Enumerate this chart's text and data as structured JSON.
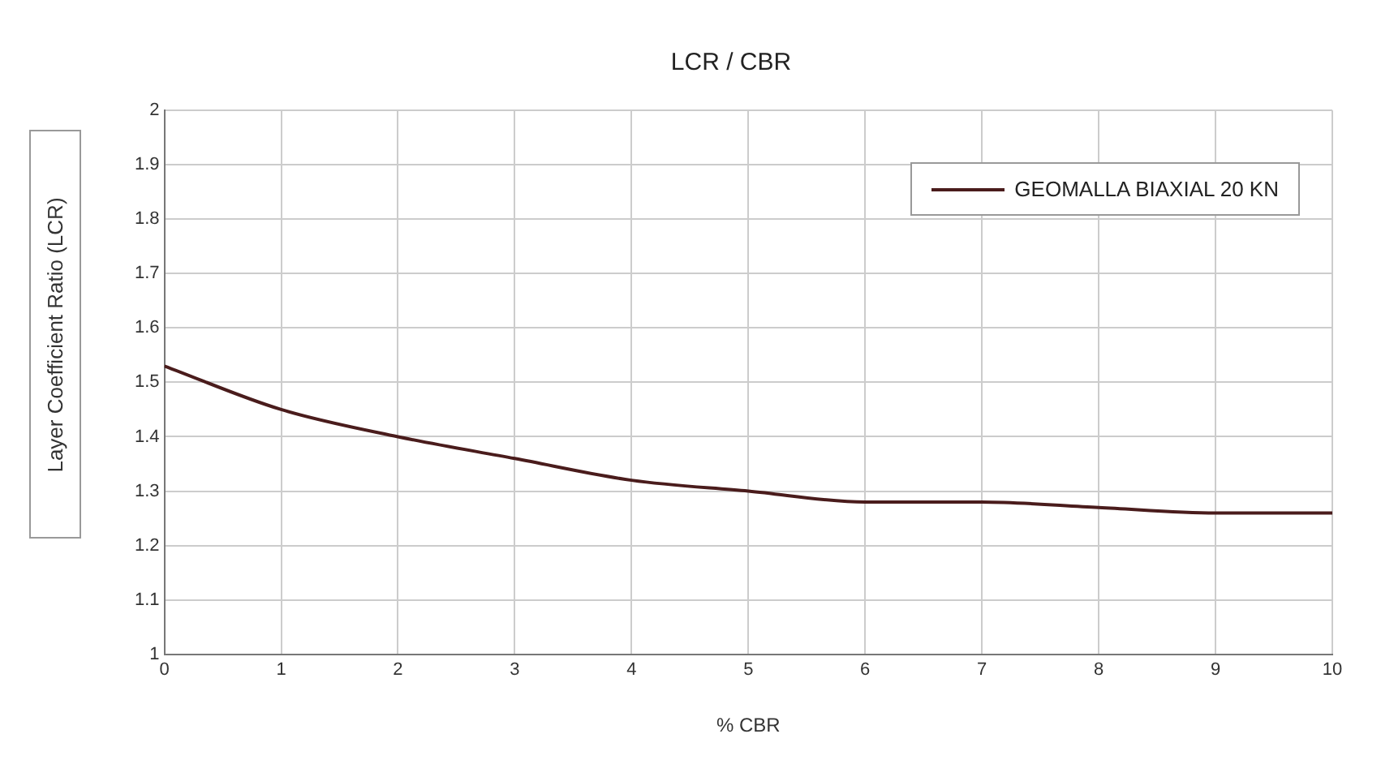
{
  "chart_data": {
    "type": "line",
    "title": "LCR / CBR",
    "xlabel": "% CBR",
    "ylabel": "Layer Coefficient Ratio (LCR)",
    "x": [
      0,
      1,
      2,
      3,
      4,
      5,
      6,
      7,
      8,
      9,
      10
    ],
    "series": [
      {
        "name": "GEOMALLA BIAXIAL 20 KN",
        "color": "#4a1c1c",
        "values": [
          1.53,
          1.45,
          1.4,
          1.36,
          1.32,
          1.3,
          1.28,
          1.28,
          1.27,
          1.26,
          1.26
        ]
      }
    ],
    "xlim": [
      0,
      10
    ],
    "xticks": [
      0,
      1,
      2,
      3,
      4,
      5,
      6,
      7,
      8,
      9,
      10
    ],
    "ylim": [
      1,
      2
    ],
    "yticks": [
      1,
      1.1,
      1.2,
      1.3,
      1.4,
      1.5,
      1.6,
      1.7,
      1.8,
      1.9,
      2
    ],
    "grid": true,
    "legend": "top right",
    "marker": "none",
    "line_style": "solid"
  }
}
